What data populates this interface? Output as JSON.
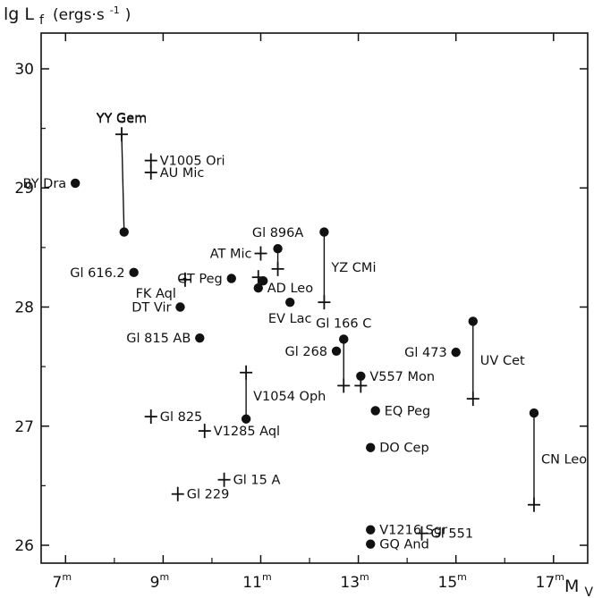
{
  "chart_data": {
    "type": "scatter",
    "ylabel": "lg L",
    "ylabel_sub": "f",
    "ylabel_unit": "(ergs·s",
    "ylabel_unit_sup": "-1",
    "ylabel_unit_close": ")",
    "xlabel": "M",
    "xlabel_sub": "V",
    "xlim": [
      6.5,
      17.7
    ],
    "ylim": [
      25.85,
      30.3
    ],
    "x_ticks": [
      {
        "value": 7,
        "label": "7",
        "sup": "m"
      },
      {
        "value": 9,
        "label": "9",
        "sup": "m"
      },
      {
        "value": 11,
        "label": "11",
        "sup": "m"
      },
      {
        "value": 13,
        "label": "13",
        "sup": "m"
      },
      {
        "value": 15,
        "label": "15",
        "sup": "m"
      },
      {
        "value": 17,
        "label": "17",
        "sup": "m"
      }
    ],
    "y_ticks": [
      {
        "value": 26,
        "label": "26"
      },
      {
        "value": 27,
        "label": "27"
      },
      {
        "value": 28,
        "label": "28"
      },
      {
        "value": 29,
        "label": "29"
      },
      {
        "value": 30,
        "label": "30"
      }
    ],
    "grid": false,
    "markers": {
      "dot": "filled circle",
      "cross": "plus sign"
    },
    "points": [
      {
        "name": "BY Dra",
        "x": 7.2,
        "y": 29.04,
        "marker": "dot",
        "label_pos": "left"
      },
      {
        "name": "YY Gem",
        "x": 8.2,
        "y": 28.63,
        "marker": "dot",
        "label": ""
      },
      {
        "name": "YY Gem",
        "x": 8.15,
        "y": 29.45,
        "marker": "cross",
        "label_pos": "above"
      },
      {
        "name": "V1005 Ori",
        "x": 8.75,
        "y": 29.23,
        "marker": "cross",
        "label_pos": "right"
      },
      {
        "name": "AU Mic",
        "x": 8.75,
        "y": 29.13,
        "marker": "cross",
        "label_pos": "right"
      },
      {
        "name": "Gl 616.2",
        "x": 8.4,
        "y": 28.29,
        "marker": "dot",
        "label_pos": "left"
      },
      {
        "name": "FK Aql",
        "x": 9.45,
        "y": 28.23,
        "marker": "cross",
        "label_pos": "below-left"
      },
      {
        "name": "DT Vir",
        "x": 9.35,
        "y": 28.0,
        "marker": "dot",
        "label_pos": "left"
      },
      {
        "name": "Gl 815 AB",
        "x": 9.75,
        "y": 27.74,
        "marker": "dot",
        "label_pos": "left"
      },
      {
        "name": "AT Mic",
        "x": 11.0,
        "y": 28.45,
        "marker": "cross",
        "label_pos": "left"
      },
      {
        "name": "GT Peg",
        "x": 10.4,
        "y": 28.24,
        "marker": "dot",
        "label_pos": "left"
      },
      {
        "name": "",
        "x": 10.95,
        "y": 28.25,
        "marker": "cross"
      },
      {
        "name": "",
        "x": 11.05,
        "y": 28.22,
        "marker": "dot"
      },
      {
        "name": "AD Leo",
        "x": 10.95,
        "y": 28.16,
        "marker": "dot",
        "label_pos": "right"
      },
      {
        "name": "Gl 896A",
        "x": 11.35,
        "y": 28.49,
        "marker": "dot",
        "label_pos": "above"
      },
      {
        "name": "",
        "x": 11.35,
        "y": 28.32,
        "marker": "cross"
      },
      {
        "name": "EV Lac",
        "x": 11.6,
        "y": 28.04,
        "marker": "dot",
        "label_pos": "below"
      },
      {
        "name": "YZ CMi",
        "x": 12.3,
        "y": 28.63,
        "marker": "dot",
        "label": ""
      },
      {
        "name": "YZ CMi",
        "x": 12.3,
        "y": 28.04,
        "marker": "cross",
        "label": ""
      },
      {
        "name": "Gl 166 C",
        "x": 12.7,
        "y": 27.73,
        "marker": "dot",
        "label_pos": "above"
      },
      {
        "name": "Gl 268",
        "x": 12.55,
        "y": 27.63,
        "marker": "dot",
        "label_pos": "left"
      },
      {
        "name": "",
        "x": 12.7,
        "y": 27.34,
        "marker": "cross"
      },
      {
        "name": "V557 Mon",
        "x": 13.05,
        "y": 27.42,
        "marker": "dot",
        "label_pos": "right"
      },
      {
        "name": "",
        "x": 13.05,
        "y": 27.34,
        "marker": "cross"
      },
      {
        "name": "V1054 Oph",
        "x": 10.7,
        "y": 27.45,
        "marker": "cross",
        "label": ""
      },
      {
        "name": "V1054 Oph",
        "x": 10.7,
        "y": 27.06,
        "marker": "dot",
        "label": ""
      },
      {
        "name": "EQ Peg",
        "x": 13.35,
        "y": 27.13,
        "marker": "dot",
        "label_pos": "right"
      },
      {
        "name": "DO Cep",
        "x": 13.25,
        "y": 26.82,
        "marker": "dot",
        "label_pos": "right"
      },
      {
        "name": "Gl 473",
        "x": 15.0,
        "y": 27.62,
        "marker": "dot",
        "label_pos": "left"
      },
      {
        "name": "UV Cet",
        "x": 15.35,
        "y": 27.88,
        "marker": "dot",
        "label": ""
      },
      {
        "name": "UV Cet",
        "x": 15.35,
        "y": 27.23,
        "marker": "cross",
        "label": ""
      },
      {
        "name": "CN Leo",
        "x": 16.6,
        "y": 27.11,
        "marker": "dot",
        "label": ""
      },
      {
        "name": "CN Leo",
        "x": 16.6,
        "y": 26.34,
        "marker": "cross",
        "label": ""
      },
      {
        "name": "Gl 825",
        "x": 8.75,
        "y": 27.08,
        "marker": "cross",
        "label_pos": "right"
      },
      {
        "name": "V1285 Aql",
        "x": 9.85,
        "y": 26.96,
        "marker": "cross",
        "label_pos": "right"
      },
      {
        "name": "Gl 15 A",
        "x": 10.25,
        "y": 26.55,
        "marker": "cross",
        "label_pos": "right"
      },
      {
        "name": "Gl 229",
        "x": 9.3,
        "y": 26.43,
        "marker": "cross",
        "label_pos": "right"
      },
      {
        "name": "V1216 Sgr",
        "x": 13.25,
        "y": 26.13,
        "marker": "dot",
        "label_pos": "right"
      },
      {
        "name": "GQ And",
        "x": 13.25,
        "y": 26.01,
        "marker": "dot",
        "label_pos": "right"
      },
      {
        "name": "Gl 551",
        "x": 14.3,
        "y": 26.1,
        "marker": "cross",
        "label_pos": "right"
      }
    ],
    "connectors": [
      {
        "name": "YY Gem",
        "x1": 8.15,
        "y1": 29.45,
        "x2": 8.2,
        "y2": 28.63,
        "label_pos": "above-top"
      },
      {
        "name": "YZ CMi",
        "x1": 12.3,
        "y1": 28.63,
        "x2": 12.3,
        "y2": 28.04,
        "label_pos": "right-mid"
      },
      {
        "name": "",
        "x1": 11.35,
        "y1": 28.49,
        "x2": 11.35,
        "y2": 28.32
      },
      {
        "name": "",
        "x1": 12.7,
        "y1": 27.73,
        "x2": 12.7,
        "y2": 27.34
      },
      {
        "name": "",
        "x1": 13.05,
        "y1": 27.42,
        "x2": 13.05,
        "y2": 27.34
      },
      {
        "name": "V1054 Oph",
        "x1": 10.7,
        "y1": 27.45,
        "x2": 10.7,
        "y2": 27.06,
        "label_pos": "right-mid"
      },
      {
        "name": "UV Cet",
        "x1": 15.35,
        "y1": 27.88,
        "x2": 15.35,
        "y2": 27.23,
        "label_pos": "right-mid"
      },
      {
        "name": "CN Leo",
        "x1": 16.6,
        "y1": 27.11,
        "x2": 16.6,
        "y2": 26.34,
        "label_pos": "right-mid"
      }
    ]
  }
}
